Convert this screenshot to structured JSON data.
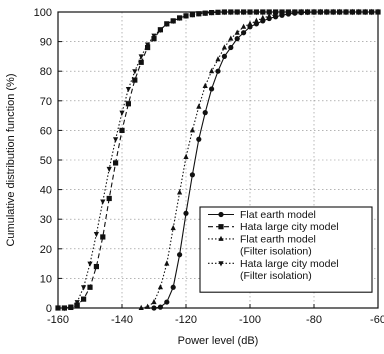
{
  "chart_data": {
    "type": "line",
    "title": "",
    "xlabel": "Power level (dB)",
    "ylabel": "Cumulative distribution function (%)",
    "xlim": [
      -160,
      -60
    ],
    "ylim": [
      0,
      100
    ],
    "xticks": [
      -160,
      -140,
      -120,
      -100,
      -80,
      -60
    ],
    "yticks": [
      0,
      10,
      20,
      30,
      40,
      50,
      60,
      70,
      80,
      90,
      100
    ],
    "grid": true,
    "legend_position": "bottom-right",
    "series": [
      {
        "name": "Flat earth model",
        "label_lines": [
          "Flat earth model"
        ],
        "marker": "circle",
        "line": "solid",
        "points": [
          [
            -130,
            0
          ],
          [
            -128,
            0.3
          ],
          [
            -126,
            2
          ],
          [
            -124,
            7
          ],
          [
            -122,
            18
          ],
          [
            -120,
            32
          ],
          [
            -118,
            45
          ],
          [
            -116,
            57
          ],
          [
            -114,
            66
          ],
          [
            -112,
            74
          ],
          [
            -110,
            80
          ],
          [
            -108,
            85
          ],
          [
            -106,
            88
          ],
          [
            -104,
            91
          ],
          [
            -102,
            93
          ],
          [
            -100,
            95
          ],
          [
            -98,
            96
          ],
          [
            -96,
            97
          ],
          [
            -94,
            97.8
          ],
          [
            -92,
            98.4
          ],
          [
            -90,
            98.9
          ],
          [
            -88,
            99.3
          ],
          [
            -86,
            99.6
          ],
          [
            -84,
            99.8
          ],
          [
            -82,
            99.9
          ],
          [
            -80,
            100
          ],
          [
            -78,
            100
          ],
          [
            -76,
            100
          ],
          [
            -74,
            100
          ],
          [
            -72,
            100
          ],
          [
            -70,
            100
          ],
          [
            -68,
            100
          ],
          [
            -66,
            100
          ],
          [
            -64,
            100
          ],
          [
            -62,
            100
          ],
          [
            -60,
            100
          ]
        ]
      },
      {
        "name": "Hata large city model",
        "label_lines": [
          "Hata large city model"
        ],
        "marker": "square",
        "line": "dashed",
        "points": [
          [
            -160,
            0
          ],
          [
            -158,
            0
          ],
          [
            -156,
            0.2
          ],
          [
            -154,
            1
          ],
          [
            -152,
            3
          ],
          [
            -150,
            7
          ],
          [
            -148,
            14
          ],
          [
            -146,
            24
          ],
          [
            -144,
            37
          ],
          [
            -142,
            49
          ],
          [
            -140,
            60
          ],
          [
            -138,
            69
          ],
          [
            -136,
            77
          ],
          [
            -134,
            83
          ],
          [
            -132,
            88
          ],
          [
            -130,
            91
          ],
          [
            -128,
            94
          ],
          [
            -126,
            96
          ],
          [
            -124,
            97
          ],
          [
            -122,
            98
          ],
          [
            -120,
            98.7
          ],
          [
            -118,
            99.1
          ],
          [
            -116,
            99.4
          ],
          [
            -114,
            99.6
          ],
          [
            -112,
            99.8
          ],
          [
            -110,
            99.9
          ],
          [
            -108,
            100
          ],
          [
            -106,
            100
          ],
          [
            -104,
            100
          ],
          [
            -102,
            100
          ],
          [
            -100,
            100
          ],
          [
            -98,
            100
          ],
          [
            -96,
            100
          ],
          [
            -94,
            100
          ],
          [
            -92,
            100
          ],
          [
            -90,
            100
          ],
          [
            -88,
            100
          ],
          [
            -86,
            100
          ],
          [
            -84,
            100
          ],
          [
            -82,
            100
          ],
          [
            -80,
            100
          ],
          [
            -78,
            100
          ],
          [
            -76,
            100
          ],
          [
            -74,
            100
          ],
          [
            -72,
            100
          ],
          [
            -70,
            100
          ],
          [
            -68,
            100
          ],
          [
            -66,
            100
          ],
          [
            -64,
            100
          ],
          [
            -62,
            100
          ],
          [
            -60,
            100
          ]
        ]
      },
      {
        "name": "Flat earth model (Filter isolation)",
        "label_lines": [
          "Flat earth model",
          "(Filter isolation)"
        ],
        "marker": "triangle-up",
        "line": "dotted",
        "points": [
          [
            -134,
            0
          ],
          [
            -132,
            0.4
          ],
          [
            -130,
            2
          ],
          [
            -128,
            7
          ],
          [
            -126,
            15
          ],
          [
            -124,
            27
          ],
          [
            -122,
            39
          ],
          [
            -120,
            51
          ],
          [
            -118,
            60
          ],
          [
            -116,
            68
          ],
          [
            -114,
            75
          ],
          [
            -112,
            80
          ],
          [
            -110,
            84
          ],
          [
            -108,
            88
          ],
          [
            -106,
            91
          ],
          [
            -104,
            93
          ],
          [
            -102,
            95
          ],
          [
            -100,
            96
          ],
          [
            -98,
            97
          ],
          [
            -96,
            98
          ],
          [
            -94,
            98.6
          ],
          [
            -92,
            99.1
          ],
          [
            -90,
            99.4
          ],
          [
            -88,
            99.7
          ],
          [
            -86,
            99.9
          ],
          [
            -84,
            100
          ],
          [
            -82,
            100
          ],
          [
            -80,
            100
          ],
          [
            -78,
            100
          ],
          [
            -76,
            100
          ],
          [
            -74,
            100
          ],
          [
            -72,
            100
          ],
          [
            -70,
            100
          ],
          [
            -68,
            100
          ],
          [
            -66,
            100
          ],
          [
            -64,
            100
          ],
          [
            -62,
            100
          ],
          [
            -60,
            100
          ]
        ]
      },
      {
        "name": "Hata large city model (Filter isolation)",
        "label_lines": [
          "Hata large city model",
          "(Filter isolation)"
        ],
        "marker": "triangle-down",
        "line": "dotted",
        "points": [
          [
            -158,
            0
          ],
          [
            -156,
            0.5
          ],
          [
            -154,
            2
          ],
          [
            -152,
            7
          ],
          [
            -150,
            15
          ],
          [
            -148,
            25
          ],
          [
            -146,
            36
          ],
          [
            -144,
            47
          ],
          [
            -142,
            57
          ],
          [
            -140,
            66
          ],
          [
            -138,
            74
          ],
          [
            -136,
            80
          ],
          [
            -134,
            85
          ],
          [
            -132,
            89
          ],
          [
            -130,
            92
          ],
          [
            -128,
            94
          ],
          [
            -126,
            96
          ],
          [
            -124,
            97
          ],
          [
            -122,
            98
          ],
          [
            -120,
            98.7
          ],
          [
            -118,
            99.2
          ],
          [
            -116,
            99.5
          ],
          [
            -114,
            99.7
          ],
          [
            -112,
            99.9
          ],
          [
            -110,
            100
          ],
          [
            -108,
            100
          ],
          [
            -106,
            100
          ],
          [
            -104,
            100
          ],
          [
            -102,
            100
          ],
          [
            -100,
            100
          ],
          [
            -98,
            100
          ],
          [
            -96,
            100
          ],
          [
            -94,
            100
          ],
          [
            -92,
            100
          ],
          [
            -90,
            100
          ],
          [
            -88,
            100
          ],
          [
            -86,
            100
          ],
          [
            -84,
            100
          ],
          [
            -82,
            100
          ],
          [
            -80,
            100
          ],
          [
            -78,
            100
          ],
          [
            -76,
            100
          ],
          [
            -74,
            100
          ],
          [
            -72,
            100
          ],
          [
            -70,
            100
          ],
          [
            -68,
            100
          ],
          [
            -66,
            100
          ],
          [
            -64,
            100
          ],
          [
            -62,
            100
          ],
          [
            -60,
            100
          ]
        ]
      }
    ]
  }
}
